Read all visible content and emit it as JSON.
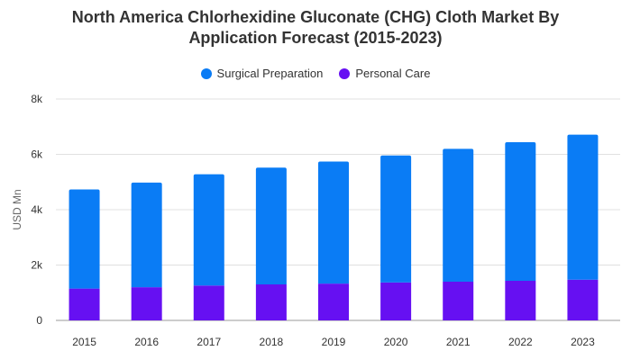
{
  "chart_data": {
    "type": "bar",
    "stacked": true,
    "title_line1": "North America Chlorhexidine Gluconate (CHG) Cloth Market By",
    "title_line2": "Application Forecast (2015-2023)",
    "xlabel": "",
    "ylabel": "USD Mn",
    "categories": [
      "2015",
      "2016",
      "2017",
      "2018",
      "2019",
      "2020",
      "2021",
      "2022",
      "2023"
    ],
    "series": [
      {
        "name": "Personal Care",
        "color": "#6610f2",
        "values": [
          1150,
          1200,
          1260,
          1300,
          1330,
          1370,
          1400,
          1430,
          1470
        ]
      },
      {
        "name": "Surgical Preparation",
        "color": "#0a7cf5",
        "values": [
          3580,
          3780,
          4020,
          4220,
          4410,
          4590,
          4800,
          5010,
          5240
        ]
      }
    ],
    "ylim": [
      0,
      8000
    ],
    "yticks": [
      0,
      2000,
      4000,
      6000,
      8000
    ],
    "ytick_labels": [
      "0",
      "2k",
      "4k",
      "6k",
      "8k"
    ],
    "grid": true,
    "legend": "top-center",
    "legend_order": [
      "Surgical Preparation",
      "Personal Care"
    ]
  }
}
